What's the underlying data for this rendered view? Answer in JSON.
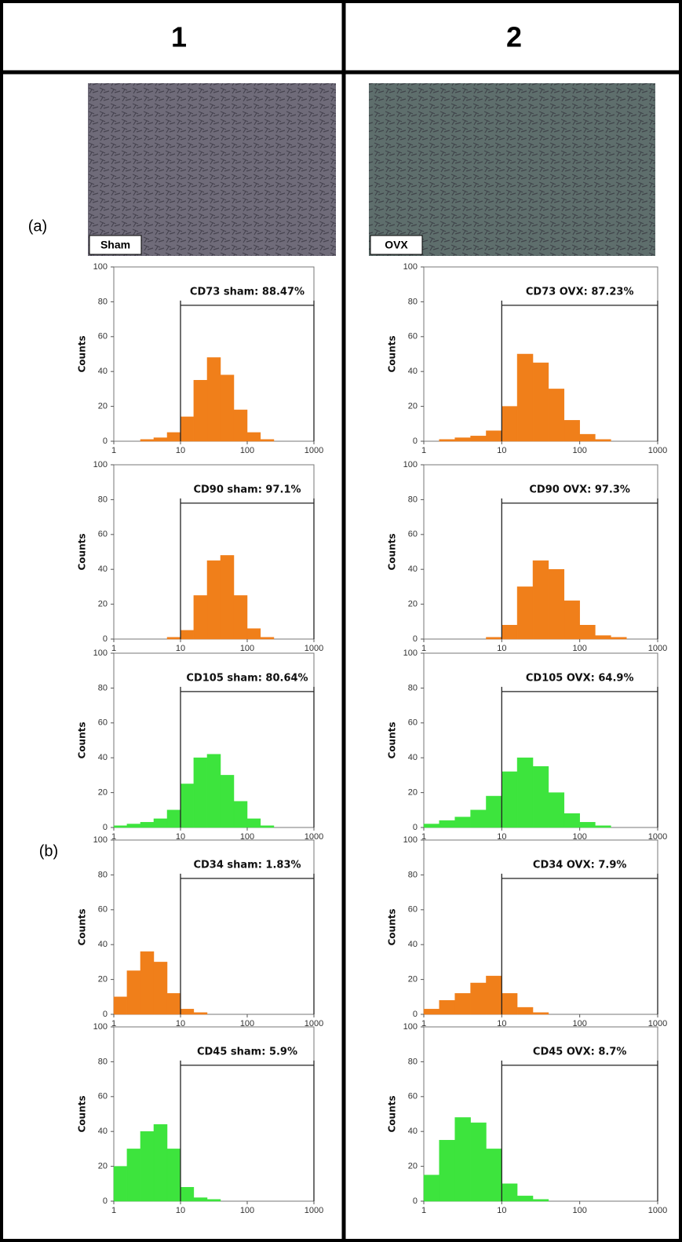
{
  "columns": [
    "1",
    "2"
  ],
  "row_labels": [
    "(a)",
    "(b)"
  ],
  "image_labels": [
    "Sham",
    "OVX"
  ],
  "chart_data": [
    {
      "type": "histogram",
      "annotation": "CD73 sham: 88.47%",
      "y_label": "Counts",
      "color": "#f07f1a",
      "log_x": true,
      "gate": [
        10,
        1000
      ],
      "bins": [
        1,
        1.58,
        2.51,
        3.98,
        6.31,
        10,
        15.8,
        25.1,
        39.8,
        63.1,
        100,
        158,
        251,
        398,
        631,
        1000
      ],
      "values": [
        0,
        0,
        1,
        2,
        5,
        14,
        35,
        48,
        38,
        18,
        5,
        1,
        0,
        0,
        0
      ],
      "xlim": [
        1,
        1000
      ],
      "ylim": [
        0,
        100
      ],
      "xticks": [
        1,
        10,
        100,
        1000
      ],
      "yticks": [
        0,
        20,
        40,
        60,
        80,
        100
      ]
    },
    {
      "type": "histogram",
      "annotation": "CD73 OVX: 87.23%",
      "y_label": "Counts",
      "color": "#f07f1a",
      "log_x": true,
      "gate": [
        10,
        1000
      ],
      "bins": [
        1,
        1.58,
        2.51,
        3.98,
        6.31,
        10,
        15.8,
        25.1,
        39.8,
        63.1,
        100,
        158,
        251,
        398,
        631,
        1000
      ],
      "values": [
        0,
        1,
        2,
        3,
        6,
        20,
        50,
        45,
        30,
        12,
        4,
        1,
        0,
        0,
        0
      ],
      "xlim": [
        1,
        1000
      ],
      "ylim": [
        0,
        100
      ],
      "xticks": [
        1,
        10,
        100,
        1000
      ],
      "yticks": [
        0,
        20,
        40,
        60,
        80,
        100
      ]
    },
    {
      "type": "histogram",
      "annotation": "CD90 sham: 97.1%",
      "y_label": "Counts",
      "color": "#f07f1a",
      "log_x": true,
      "gate": [
        10,
        1000
      ],
      "bins": [
        1,
        1.58,
        2.51,
        3.98,
        6.31,
        10,
        15.8,
        25.1,
        39.8,
        63.1,
        100,
        158,
        251,
        398,
        631,
        1000
      ],
      "values": [
        0,
        0,
        0,
        0,
        1,
        5,
        25,
        45,
        48,
        25,
        6,
        1,
        0,
        0,
        0
      ],
      "xlim": [
        1,
        1000
      ],
      "ylim": [
        0,
        100
      ],
      "xticks": [
        1,
        10,
        100,
        1000
      ],
      "yticks": [
        0,
        20,
        40,
        60,
        80,
        100
      ]
    },
    {
      "type": "histogram",
      "annotation": "CD90 OVX: 97.3%",
      "y_label": "Counts",
      "color": "#f07f1a",
      "log_x": true,
      "gate": [
        10,
        1000
      ],
      "bins": [
        1,
        1.58,
        2.51,
        3.98,
        6.31,
        10,
        15.8,
        25.1,
        39.8,
        63.1,
        100,
        158,
        251,
        398,
        631,
        1000
      ],
      "values": [
        0,
        0,
        0,
        0,
        1,
        8,
        30,
        45,
        40,
        22,
        8,
        2,
        1,
        0,
        0
      ],
      "xlim": [
        1,
        1000
      ],
      "ylim": [
        0,
        100
      ],
      "xticks": [
        1,
        10,
        100,
        1000
      ],
      "yticks": [
        0,
        20,
        40,
        60,
        80,
        100
      ]
    },
    {
      "type": "histogram",
      "annotation": "CD105 sham: 80.64%",
      "y_label": "Counts",
      "color": "#3de43d",
      "log_x": true,
      "gate": [
        10,
        1000
      ],
      "bins": [
        1,
        1.58,
        2.51,
        3.98,
        6.31,
        10,
        15.8,
        25.1,
        39.8,
        63.1,
        100,
        158,
        251,
        398,
        631,
        1000
      ],
      "values": [
        1,
        2,
        3,
        5,
        10,
        25,
        40,
        42,
        30,
        15,
        5,
        1,
        0,
        0,
        0
      ],
      "xlim": [
        1,
        1000
      ],
      "ylim": [
        0,
        100
      ],
      "xticks": [
        1,
        10,
        100,
        1000
      ],
      "yticks": [
        0,
        20,
        40,
        60,
        80,
        100
      ]
    },
    {
      "type": "histogram",
      "annotation": "CD105 OVX: 64.9%",
      "y_label": "Counts",
      "color": "#3de43d",
      "log_x": true,
      "gate": [
        10,
        1000
      ],
      "bins": [
        1,
        1.58,
        2.51,
        3.98,
        6.31,
        10,
        15.8,
        25.1,
        39.8,
        63.1,
        100,
        158,
        251,
        398,
        631,
        1000
      ],
      "values": [
        2,
        4,
        6,
        10,
        18,
        32,
        40,
        35,
        20,
        8,
        3,
        1,
        0,
        0,
        0
      ],
      "xlim": [
        1,
        1000
      ],
      "ylim": [
        0,
        100
      ],
      "xticks": [
        1,
        10,
        100,
        1000
      ],
      "yticks": [
        0,
        20,
        40,
        60,
        80,
        100
      ]
    },
    {
      "type": "histogram",
      "annotation": "CD34 sham: 1.83%",
      "y_label": "Counts",
      "color": "#f07f1a",
      "log_x": true,
      "gate": [
        10,
        1000
      ],
      "bins": [
        1,
        1.58,
        2.51,
        3.98,
        6.31,
        10,
        15.8,
        25.1,
        39.8,
        63.1,
        100,
        158,
        251,
        398,
        631,
        1000
      ],
      "values": [
        10,
        25,
        36,
        30,
        12,
        3,
        1,
        0,
        0,
        0,
        0,
        0,
        0,
        0,
        0
      ],
      "xlim": [
        1,
        1000
      ],
      "ylim": [
        0,
        100
      ],
      "xticks": [
        1,
        10,
        100,
        1000
      ],
      "yticks": [
        0,
        20,
        40,
        60,
        80,
        100
      ]
    },
    {
      "type": "histogram",
      "annotation": "CD34 OVX: 7.9%",
      "y_label": "Counts",
      "color": "#f07f1a",
      "log_x": true,
      "gate": [
        10,
        1000
      ],
      "bins": [
        1,
        1.58,
        2.51,
        3.98,
        6.31,
        10,
        15.8,
        25.1,
        39.8,
        63.1,
        100,
        158,
        251,
        398,
        631,
        1000
      ],
      "values": [
        3,
        8,
        12,
        18,
        22,
        12,
        4,
        1,
        0,
        0,
        0,
        0,
        0,
        0,
        0
      ],
      "xlim": [
        1,
        1000
      ],
      "ylim": [
        0,
        100
      ],
      "xticks": [
        1,
        10,
        100,
        1000
      ],
      "yticks": [
        0,
        20,
        40,
        60,
        80,
        100
      ]
    },
    {
      "type": "histogram",
      "annotation": "CD45 sham: 5.9%",
      "y_label": "Counts",
      "color": "#3de43d",
      "log_x": true,
      "gate": [
        10,
        1000
      ],
      "bins": [
        1,
        1.58,
        2.51,
        3.98,
        6.31,
        10,
        15.8,
        25.1,
        39.8,
        63.1,
        100,
        158,
        251,
        398,
        631,
        1000
      ],
      "values": [
        20,
        30,
        40,
        44,
        30,
        8,
        2,
        1,
        0,
        0,
        0,
        0,
        0,
        0,
        0
      ],
      "xlim": [
        1,
        1000
      ],
      "ylim": [
        0,
        100
      ],
      "xticks": [
        1,
        10,
        100,
        1000
      ],
      "yticks": [
        0,
        20,
        40,
        60,
        80,
        100
      ]
    },
    {
      "type": "histogram",
      "annotation": "CD45 OVX: 8.7%",
      "y_label": "Counts",
      "color": "#3de43d",
      "log_x": true,
      "gate": [
        10,
        1000
      ],
      "bins": [
        1,
        1.58,
        2.51,
        3.98,
        6.31,
        10,
        15.8,
        25.1,
        39.8,
        63.1,
        100,
        158,
        251,
        398,
        631,
        1000
      ],
      "values": [
        15,
        35,
        48,
        45,
        30,
        10,
        3,
        1,
        0,
        0,
        0,
        0,
        0,
        0,
        0
      ],
      "xlim": [
        1,
        1000
      ],
      "ylim": [
        0,
        100
      ],
      "xticks": [
        1,
        10,
        100,
        1000
      ],
      "yticks": [
        0,
        20,
        40,
        60,
        80,
        100
      ]
    }
  ]
}
